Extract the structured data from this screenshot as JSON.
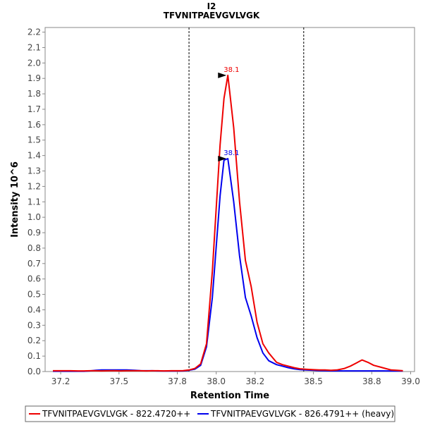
{
  "chart_data": {
    "type": "line",
    "title": "I2",
    "subtitle": "TFVNITPAEVGVLVGK",
    "xlabel": "Retention Time",
    "ylabel": "Intensity 10^6",
    "xlim": [
      37.12,
      39.02
    ],
    "ylim": [
      0.0,
      2.23
    ],
    "xticks": [
      37.2,
      37.5,
      37.8,
      38.0,
      38.2,
      38.5,
      38.8,
      39.0
    ],
    "xtick_labels": [
      "37.2",
      "37.5",
      "37.8",
      "38.0",
      "38.2",
      "38.5",
      "38.8",
      "39.0"
    ],
    "yticks": [
      0.0,
      0.1,
      0.2,
      0.3,
      0.4,
      0.5,
      0.6,
      0.7,
      0.8,
      0.9,
      1.0,
      1.1,
      1.2,
      1.3,
      1.4,
      1.5,
      1.6,
      1.7,
      1.8,
      1.9,
      2.0,
      2.1,
      2.2
    ],
    "ytick_labels": [
      "0.0",
      "0.1",
      "0.2",
      "0.3",
      "0.4",
      "0.5",
      "0.6",
      "0.7",
      "0.8",
      "0.9",
      "1.0",
      "1.1",
      "1.2",
      "1.3",
      "1.4",
      "1.5",
      "1.6",
      "1.7",
      "1.8",
      "1.9",
      "2.0",
      "2.1",
      "2.2"
    ],
    "integration_bounds": [
      37.86,
      38.45
    ],
    "grid": false,
    "legend_position": "bottom",
    "series": [
      {
        "name": "TFVNITPAEVGVLVGK - 822.4720++",
        "color": "#ee0000",
        "peak_label": "38.1",
        "peak_at": [
          38.06,
          1.92
        ],
        "x": [
          37.16,
          37.19,
          37.22,
          37.25,
          37.29,
          37.32,
          37.35,
          37.38,
          37.41,
          37.45,
          37.48,
          37.51,
          37.54,
          37.58,
          37.61,
          37.64,
          37.67,
          37.7,
          37.73,
          37.77,
          37.8,
          37.83,
          37.86,
          37.89,
          37.92,
          37.95,
          37.98,
          38.02,
          38.04,
          38.06,
          38.09,
          38.12,
          38.15,
          38.18,
          38.21,
          38.24,
          38.27,
          38.31,
          38.34,
          38.37,
          38.4,
          38.43,
          38.46,
          38.5,
          38.53,
          38.56,
          38.59,
          38.62,
          38.66,
          38.69,
          38.72,
          38.75,
          38.78,
          38.81,
          38.84,
          38.87,
          38.9,
          38.93,
          38.96
        ],
        "y": [
          0.005,
          0.005,
          0.005,
          0.005,
          0.004,
          0.004,
          0.005,
          0.005,
          0.004,
          0.005,
          0.005,
          0.004,
          0.005,
          0.005,
          0.005,
          0.004,
          0.005,
          0.005,
          0.004,
          0.005,
          0.005,
          0.006,
          0.01,
          0.02,
          0.05,
          0.18,
          0.65,
          1.47,
          1.77,
          1.92,
          1.58,
          1.1,
          0.72,
          0.55,
          0.32,
          0.18,
          0.12,
          0.06,
          0.045,
          0.035,
          0.025,
          0.018,
          0.015,
          0.012,
          0.01,
          0.01,
          0.008,
          0.01,
          0.02,
          0.035,
          0.055,
          0.075,
          0.06,
          0.04,
          0.03,
          0.02,
          0.01,
          0.008,
          0.005
        ]
      },
      {
        "name": "TFVNITPAEVGVLVGK - 826.4791++ (heavy)",
        "color": "#0000ee",
        "peak_label": "38.1",
        "peak_at": [
          38.06,
          1.38
        ],
        "x": [
          37.16,
          37.19,
          37.22,
          37.25,
          37.29,
          37.32,
          37.35,
          37.38,
          37.41,
          37.45,
          37.48,
          37.51,
          37.54,
          37.58,
          37.61,
          37.64,
          37.67,
          37.7,
          37.73,
          37.77,
          37.8,
          37.83,
          37.86,
          37.89,
          37.92,
          37.95,
          37.98,
          38.02,
          38.04,
          38.06,
          38.09,
          38.12,
          38.15,
          38.18,
          38.21,
          38.24,
          38.27,
          38.31,
          38.34,
          38.37,
          38.4,
          38.43,
          38.46,
          38.5,
          38.53,
          38.56,
          38.59,
          38.62,
          38.66,
          38.69,
          38.72,
          38.75,
          38.78,
          38.81,
          38.84,
          38.87,
          38.9,
          38.93,
          38.96
        ],
        "y": [
          0.002,
          0.002,
          0.002,
          0.002,
          0.002,
          0.002,
          0.004,
          0.008,
          0.01,
          0.01,
          0.01,
          0.01,
          0.01,
          0.008,
          0.006,
          0.005,
          0.005,
          0.004,
          0.003,
          0.003,
          0.003,
          0.004,
          0.008,
          0.015,
          0.04,
          0.16,
          0.48,
          1.14,
          1.37,
          1.38,
          1.1,
          0.75,
          0.48,
          0.36,
          0.22,
          0.12,
          0.07,
          0.045,
          0.035,
          0.025,
          0.018,
          0.013,
          0.01,
          0.008,
          0.006,
          0.005,
          0.004,
          0.004,
          0.004,
          0.004,
          0.004,
          0.004,
          0.004,
          0.004,
          0.004,
          0.004,
          0.003,
          0.003,
          0.003
        ]
      }
    ]
  }
}
